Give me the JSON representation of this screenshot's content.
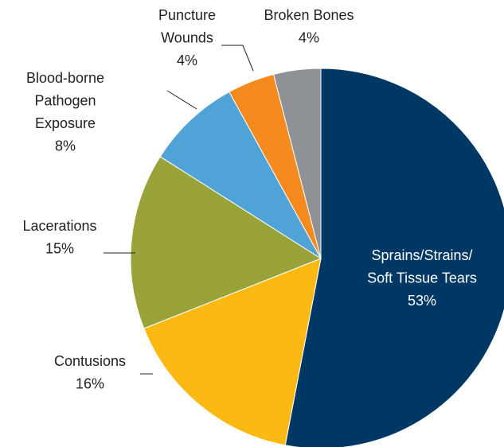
{
  "chart_data": {
    "type": "pie",
    "categories": [
      "Sprains/Strains/\nSoft Tissue Tears",
      "Contusions",
      "Lacerations",
      "Blood-borne\nPathogen\nExposure",
      "Puncture\nWounds",
      "Broken Bones"
    ],
    "values": [
      53,
      16,
      15,
      8,
      4,
      4
    ],
    "value_labels": [
      "53%",
      "16%",
      "15%",
      "8%",
      "4%",
      "4%"
    ],
    "colors": [
      "#003865",
      "#fdb913",
      "#9aa23a",
      "#4fa3d6",
      "#f58a1f",
      "#8e9196"
    ]
  }
}
